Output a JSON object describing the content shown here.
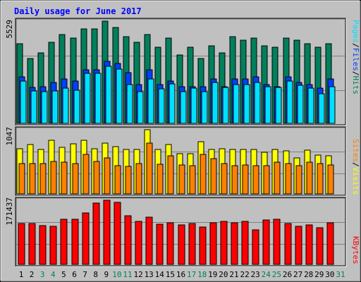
{
  "colors": {
    "background": "#c0c0c0",
    "title": "#0000ff",
    "hits": "#00805c",
    "files": "#0040ff",
    "pages": "#00e0ff",
    "visits": "#ffff00",
    "sites": "#ff8000",
    "kbytes": "#ff0000",
    "weekday_label": "#000000",
    "weekend_label": "#00805c",
    "legend_separator": "#000000"
  },
  "chart_data": {
    "type": "bar",
    "title": "Daily usage for June 2017",
    "days": [
      "1",
      "2",
      "3",
      "4",
      "5",
      "6",
      "7",
      "8",
      "9",
      "10",
      "11",
      "12",
      "13",
      "14",
      "15",
      "16",
      "17",
      "18",
      "19",
      "20",
      "21",
      "22",
      "23",
      "24",
      "25",
      "26",
      "27",
      "28",
      "29",
      "30",
      "31"
    ],
    "weekend_days": [
      "3",
      "4",
      "10",
      "11",
      "17",
      "18",
      "24",
      "25",
      "31"
    ],
    "panels": [
      {
        "id": "hits-files-pages",
        "axis_max_label": "5529",
        "ymax": 5529,
        "series": [
          {
            "name": "Hits",
            "color_key": "hits",
            "values": [
              4300,
              3500,
              3800,
              4400,
              4800,
              4600,
              5100,
              5100,
              5529,
              5200,
              4700,
              4400,
              4800,
              4100,
              4600,
              3700,
              4100,
              3500,
              4200,
              3800,
              4700,
              4500,
              4600,
              4200,
              4100,
              4600,
              4500,
              4300,
              4100,
              4300,
              null
            ]
          },
          {
            "name": "Files",
            "color_key": "files",
            "values": [
              2500,
              1950,
              2000,
              2200,
              2400,
              2300,
              2900,
              2900,
              3350,
              3250,
              2750,
              2100,
              2900,
              2100,
              2300,
              2000,
              2000,
              2000,
              2400,
              2000,
              2400,
              2400,
              2500,
              2100,
              2000,
              2500,
              2200,
              2100,
              1900,
              2400,
              null
            ]
          },
          {
            "name": "Pages",
            "color_key": "pages",
            "values": [
              2300,
              1750,
              1700,
              1750,
              1900,
              1800,
              2700,
              2700,
              3100,
              2950,
              2100,
              1700,
              2400,
              1850,
              2150,
              1700,
              1900,
              1700,
              2200,
              1950,
              2100,
              2100,
              2200,
              2000,
              1950,
              2300,
              2050,
              1900,
              1600,
              2000,
              null
            ]
          }
        ]
      },
      {
        "id": "visits-sites",
        "axis_max_label": "1047",
        "ymax": 1047,
        "series": [
          {
            "name": "Visits",
            "color_key": "visits",
            "values": [
              740,
              805,
              720,
              880,
              762,
              812,
              880,
              736,
              825,
              770,
              730,
              730,
              1047,
              720,
              800,
              660,
              660,
              850,
              720,
              740,
              720,
              720,
              720,
              680,
              720,
              700,
              585,
              712,
              630,
              625,
              null
            ]
          },
          {
            "name": "Sites",
            "color_key": "sites",
            "values": [
              500,
              500,
              495,
              530,
              520,
              500,
              640,
              535,
              590,
              460,
              450,
              495,
              830,
              480,
              620,
              475,
              455,
              640,
              580,
              500,
              460,
              470,
              460,
              460,
              520,
              500,
              460,
              520,
              500,
              470,
              null
            ]
          }
        ]
      },
      {
        "id": "kbytes",
        "axis_max_label": "171437",
        "ymax": 171437,
        "series": [
          {
            "name": "KBytes",
            "color_key": "kbytes",
            "values": [
              109000,
              109000,
              103000,
              102000,
              121000,
              121000,
              137000,
              164000,
              171437,
              166000,
              130000,
              115000,
              126000,
              108000,
              111000,
              105000,
              109000,
              100000,
              111000,
              114000,
              111000,
              114000,
              93000,
              118000,
              120000,
              110000,
              102000,
              106000,
              98000,
              112000,
              null
            ]
          }
        ]
      }
    ]
  },
  "legend": {
    "panel1": [
      "Hits",
      "Files",
      "Pages"
    ],
    "panel2": [
      "Visits",
      "Sites"
    ],
    "panel3": [
      "KBytes"
    ],
    "separator": "/"
  }
}
